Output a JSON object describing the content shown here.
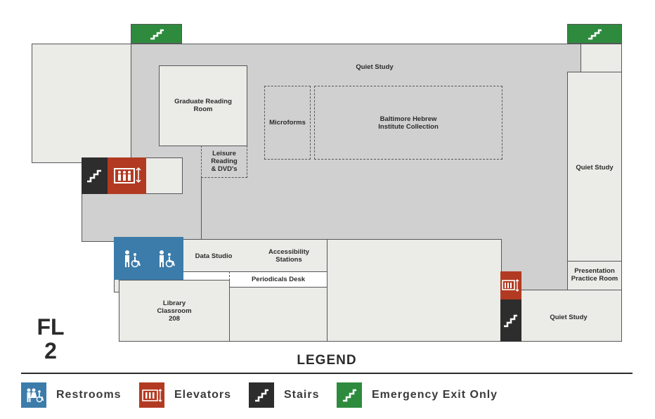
{
  "floor": {
    "line1": "FL",
    "line2": "2"
  },
  "rooms": {
    "quiet_study_top": "Quiet Study",
    "graduate_reading_line1": "Graduate Reading",
    "graduate_reading_line2": "Room",
    "microforms": "Microforms",
    "baltimore_line1": "Baltimore Hebrew",
    "baltimore_line2": "Institute Collection",
    "leisure_line1": "Leisure",
    "leisure_line2": "Reading",
    "leisure_line3": "& DVD's",
    "quiet_study_right": "Quiet Study",
    "data_studio": "Data Studio",
    "accessibility_line1": "Accessibility",
    "accessibility_line2": "Stations",
    "periodicals_desk": "Periodicals Desk",
    "library_classroom_line1": "Library",
    "library_classroom_line2": "Classroom",
    "library_classroom_line3": "208",
    "presentation_line1": "Presentation",
    "presentation_line2": "Practice Room",
    "quiet_study_bottom": "Quiet Study"
  },
  "legend": {
    "title": "LEGEND",
    "items": [
      {
        "label": "Restrooms",
        "icon": "restroom-icon",
        "color": "#3c7cab"
      },
      {
        "label": "Elevators",
        "icon": "elevator-icon",
        "color": "#b23a22"
      },
      {
        "label": "Stairs",
        "icon": "stairs-icon",
        "color": "#2d2d2d"
      },
      {
        "label": "Emergency Exit Only",
        "icon": "emergency-exit-icon",
        "color": "#2e8b3e"
      }
    ]
  },
  "colors": {
    "corridor": "#cfd0cf",
    "room": "#ebebe7",
    "outline": "#55575a",
    "restroom": "#3c7cab",
    "elevator": "#b23a22",
    "stairs": "#2d2d2d",
    "emergency_exit": "#2e8b3e"
  }
}
